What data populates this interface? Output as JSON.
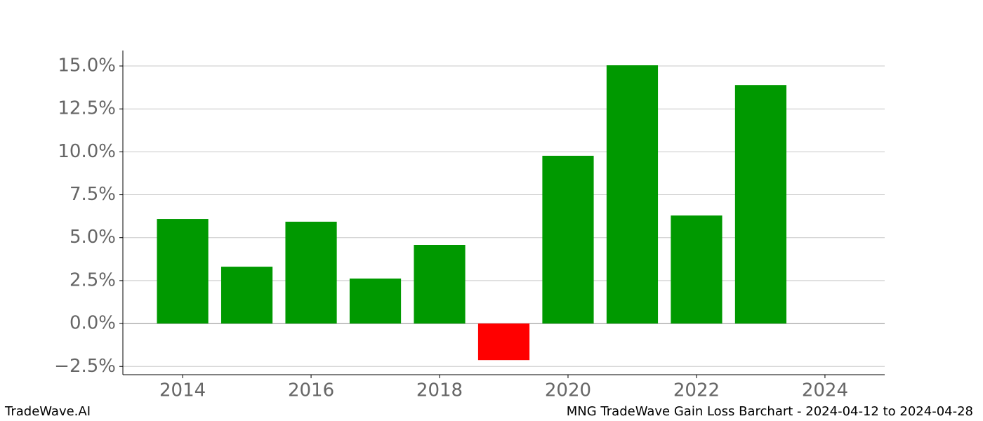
{
  "chart_data": {
    "type": "bar",
    "x": [
      2014,
      2015,
      2016,
      2017,
      2018,
      2019,
      2020,
      2021,
      2022,
      2023
    ],
    "values": [
      6.09,
      3.31,
      5.93,
      2.62,
      4.58,
      -2.13,
      9.77,
      15.04,
      6.29,
      13.89
    ],
    "colors": [
      "#009900",
      "#009900",
      "#009900",
      "#009900",
      "#009900",
      "#ff0000",
      "#009900",
      "#009900",
      "#009900",
      "#009900"
    ],
    "xlim": [
      2013.07,
      2024.93
    ],
    "xticks": [
      2014,
      2016,
      2018,
      2020,
      2022,
      2024
    ],
    "ylim": [
      -2.98,
      15.9
    ],
    "yticks": [
      {
        "value": -2.5,
        "label": "−2.5%"
      },
      {
        "value": 0,
        "label": "0.0%"
      },
      {
        "value": 2.5,
        "label": "2.5%"
      },
      {
        "value": 5,
        "label": "5.0%"
      },
      {
        "value": 7.5,
        "label": "7.5%"
      },
      {
        "value": 10,
        "label": "10.0%"
      },
      {
        "value": 12.5,
        "label": "12.5%"
      },
      {
        "value": 15,
        "label": "15.0%"
      }
    ],
    "grid": true,
    "footer_left": "TradeWave.AI",
    "footer_right": "MNG TradeWave Gain Loss Barchart - 2024-04-12 to 2024-04-28"
  }
}
